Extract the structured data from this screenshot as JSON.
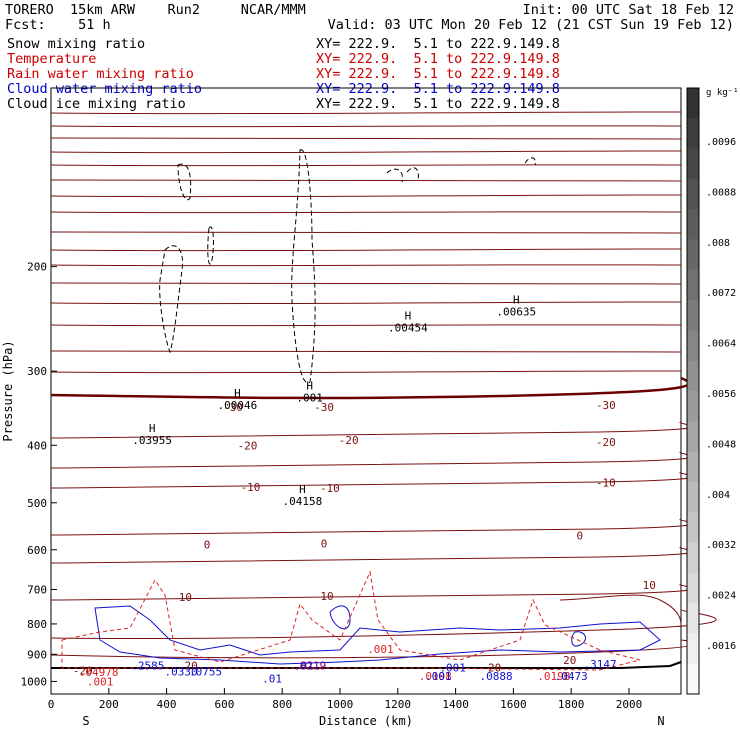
{
  "header": {
    "left_line1": "TORERO  15km ARW    Run2     NCAR/MMM",
    "left_line2": "Fcst:    51 h",
    "right_line1": "Init: 00 UTC Sat 18 Feb 12",
    "right_line2": "Valid: 03 UTC Mon 20 Feb 12 (21 CST Sun 19 Feb 12)"
  },
  "legend": [
    {
      "name": "Snow mixing ratio",
      "xy": "XY= 222.9.  5.1 to 222.9.149.8",
      "color": "#000000"
    },
    {
      "name": "Temperature",
      "xy": "XY= 222.9.  5.1 to 222.9.149.8",
      "color": "#cc0000"
    },
    {
      "name": "Rain water mixing ratio",
      "xy": "XY= 222.9.  5.1 to 222.9.149.8",
      "color": "#cc0000"
    },
    {
      "name": "Cloud water mixing ratio",
      "xy": "XY= 222.9.  5.1 to 222.9.149.8",
      "color": "#0000cc"
    },
    {
      "name": "Cloud ice mixing ratio",
      "xy": "XY= 222.9.  5.1 to 222.9.149.8",
      "color": "#000000"
    }
  ],
  "colorbar": {
    "unit": "g kg⁻¹",
    "ticks": [
      ".0096",
      ".0088",
      ".008",
      ".0072",
      ".0064",
      ".0056",
      ".0048",
      ".004",
      ".0032",
      ".0024",
      ".0016"
    ]
  },
  "chart_data": {
    "type": "contour",
    "xlabel": "Distance (km)",
    "ylabel": "Pressure (hPa)",
    "x_ticks": [
      0,
      200,
      400,
      600,
      800,
      1000,
      1200,
      1400,
      1600,
      1800,
      2000
    ],
    "y_ticks": [
      200,
      300,
      400,
      500,
      600,
      700,
      800,
      900,
      1000
    ],
    "xlim": [
      0,
      2180
    ],
    "ylim": [
      1050,
      100
    ],
    "y_scale": "log",
    "x_endpoints": {
      "left": "S",
      "right": "N"
    },
    "colors": {
      "temperature": "#7a1010",
      "freezing": "#6a0000",
      "rain": "#dd2222",
      "cloud_water": "#1010cc",
      "cloud_ice": "#000000",
      "snow_max": "#7a007a"
    },
    "temperature_labels": [
      {
        "text": "-30",
        "x": 630,
        "p": 345
      },
      {
        "text": "-30",
        "x": 945,
        "p": 345
      },
      {
        "text": "-30",
        "x": 1920,
        "p": 342
      },
      {
        "text": "-20",
        "x": 680,
        "p": 400
      },
      {
        "text": "-20",
        "x": 1030,
        "p": 392
      },
      {
        "text": "-20",
        "x": 1920,
        "p": 395
      },
      {
        "text": "-10",
        "x": 690,
        "p": 470
      },
      {
        "text": "-10",
        "x": 965,
        "p": 472
      },
      {
        "text": "-10",
        "x": 1920,
        "p": 462
      },
      {
        "text": "0",
        "x": 540,
        "p": 588
      },
      {
        "text": "0",
        "x": 945,
        "p": 586
      },
      {
        "text": "0",
        "x": 1830,
        "p": 568
      },
      {
        "text": "10",
        "x": 465,
        "p": 720
      },
      {
        "text": "10",
        "x": 955,
        "p": 718
      },
      {
        "text": "10",
        "x": 2070,
        "p": 688
      },
      {
        "text": "20",
        "x": 485,
        "p": 940
      },
      {
        "text": "20",
        "x": 1535,
        "p": 948
      },
      {
        "text": "20",
        "x": 1795,
        "p": 920
      },
      {
        "text": "-20",
        "x": 110,
        "p": 958
      }
    ],
    "cloud_ice_maxima": [
      {
        "value": ".03955",
        "x": 350,
        "p": 395
      },
      {
        "value": ".00046",
        "x": 645,
        "p": 345
      },
      {
        "value": ".001",
        "x": 895,
        "p": 335
      },
      {
        "value": ".04158",
        "x": 870,
        "p": 500
      },
      {
        "value": ".00454",
        "x": 1235,
        "p": 255
      },
      {
        "value": ".00635",
        "x": 1610,
        "p": 240
      }
    ],
    "rain_maxima": [
      {
        "value": ".04978",
        "x": 165,
        "p": 980
      },
      {
        "value": ".001",
        "x": 170,
        "p": 1015
      },
      {
        "value": ".001",
        "x": 1140,
        "p": 895
      },
      {
        "value": ".0198",
        "x": 1330,
        "p": 995
      },
      {
        "value": ".0198",
        "x": 1740,
        "p": 995
      }
    ],
    "cloud_water_maxima": [
      {
        "value": ".2585",
        "x": 335,
        "p": 955
      },
      {
        "value": ".0330",
        "x": 450,
        "p": 978
      },
      {
        "value": ".0755",
        "x": 535,
        "p": 978
      },
      {
        "value": ".01",
        "x": 875,
        "p": 955
      },
      {
        "value": ".01",
        "x": 765,
        "p": 1005
      },
      {
        "value": ".001",
        "x": 1390,
        "p": 962
      },
      {
        "value": ".001",
        "x": 1340,
        "p": 995
      },
      {
        "value": ".0888",
        "x": 1540,
        "p": 995
      },
      {
        "value": ".0473",
        "x": 1800,
        "p": 995
      },
      {
        "value": ".3147",
        "x": 1900,
        "p": 950
      }
    ],
    "snow_maxima": [
      {
        "value": ".0219",
        "x": 895,
        "p": 955
      }
    ]
  }
}
